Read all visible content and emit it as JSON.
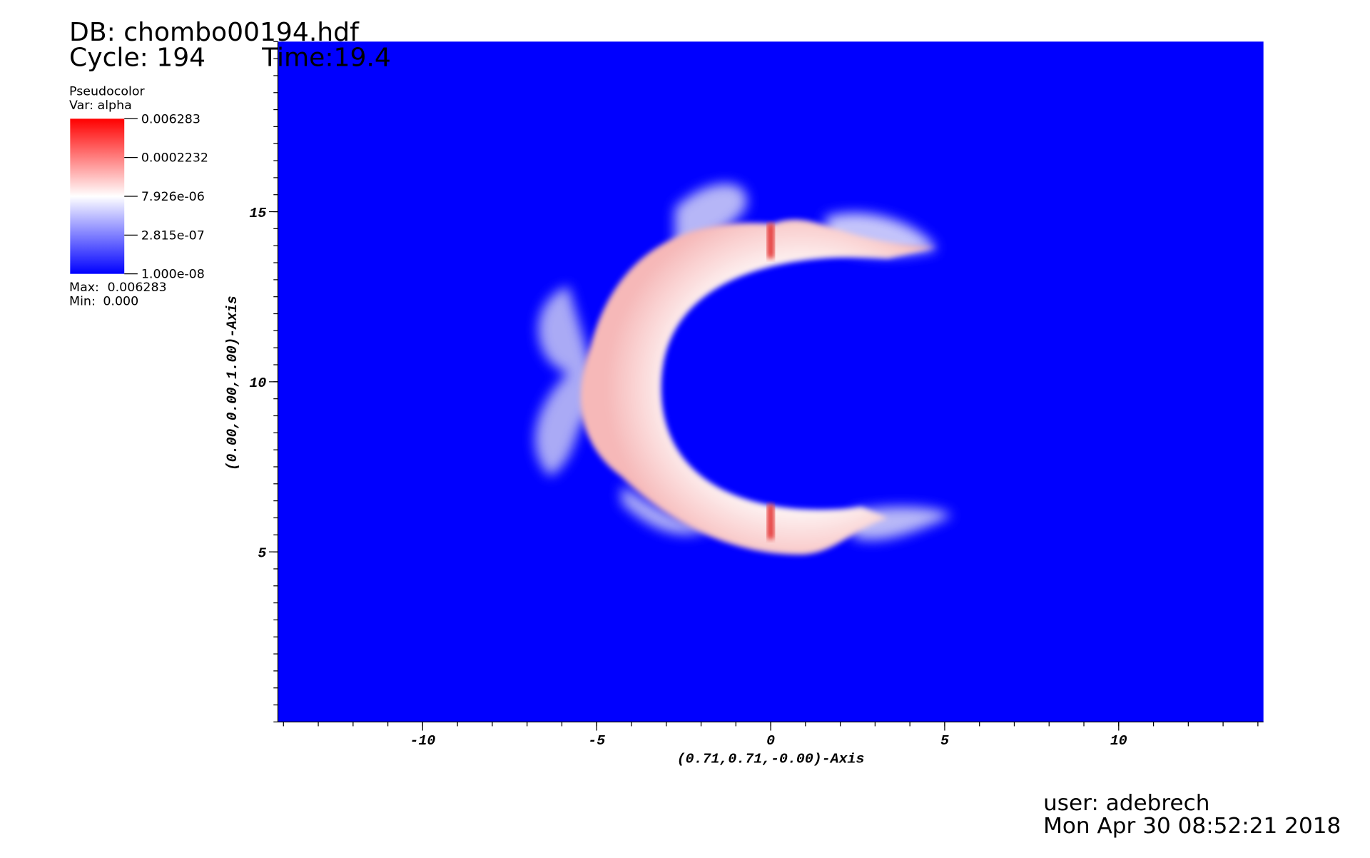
{
  "chart_data": {
    "type": "pseudocolor",
    "db": "DB: chombo00194.hdf",
    "cycle": "Cycle: 194",
    "time": "Time:19.4",
    "xlabel": "(0.71,0.71,-0.00)-Axis",
    "ylabel": "(0.00,0.00,1.00)-Axis",
    "xlim": [
      -14.16,
      14.16
    ],
    "ylim": [
      0,
      20
    ],
    "xticks": [
      -10,
      -5,
      0,
      5,
      10
    ],
    "yticks": [
      5,
      10,
      15
    ],
    "background_color": "#0000ff",
    "legend": {
      "plot": "Pseudocolor",
      "var": "Var: alpha",
      "scale": "log",
      "range": [
        1e-08,
        0.006283
      ],
      "ticks": [
        0.006283,
        0.0002232,
        {
          "value": 7.926e-06,
          "label": "7.926e-06"
        },
        {
          "value": 2.815e-07,
          "label": "2.815e-07"
        },
        {
          "value": 1e-08,
          "label": "1.000e-08"
        }
      ],
      "colors": [
        "#0000ff",
        "#ffffff",
        "#ff0000"
      ],
      "max_label": "Max:",
      "max": 0.006283,
      "min_label": "Min:",
      "min": "0.000"
    },
    "user": "user: adebrech",
    "date": "Mon Apr 30 08:52:21 2018"
  }
}
